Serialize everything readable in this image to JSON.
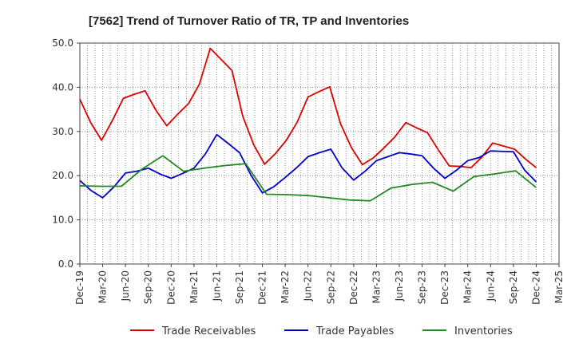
{
  "chart_data": {
    "type": "line",
    "title": "[7562]  Trend of Turnover Ratio of TR, TP and Inventories",
    "xlabel": "",
    "ylabel": "",
    "ylim": [
      0,
      50
    ],
    "y_ticks": [
      "0.0",
      "10.0",
      "20.0",
      "30.0",
      "40.0",
      "50.0"
    ],
    "x_tick_labels": [
      "Dec-19",
      "Mar-20",
      "Jun-20",
      "Sep-20",
      "Dec-20",
      "Mar-21",
      "Jun-21",
      "Sep-21",
      "Dec-21",
      "Mar-22",
      "Jun-22",
      "Sep-22",
      "Dec-22",
      "Mar-23",
      "Jun-23",
      "Sep-23",
      "Dec-23",
      "Mar-24",
      "Jun-24",
      "Sep-24",
      "Dec-24",
      "Mar-25"
    ],
    "grid": true,
    "legend_position": "bottom",
    "series": [
      {
        "name": "Trade Receivables",
        "color": "#dd0000",
        "values": [
          37.3,
          32.0,
          28.0,
          32.5,
          37.5,
          38.4,
          39.2,
          34.8,
          31.3,
          33.9,
          36.3,
          40.7,
          48.8,
          46.3,
          43.8,
          33.4,
          27.0,
          22.6,
          25.0,
          28.0,
          32.1,
          37.8,
          39.0,
          40.1,
          31.7,
          26.3,
          22.5,
          24.0,
          26.3,
          28.8,
          32.0,
          30.8,
          29.7,
          25.8,
          22.2,
          22.1,
          21.8,
          24.2,
          27.4,
          26.7,
          26.0,
          23.8,
          21.8
        ]
      },
      {
        "name": "Trade Payables",
        "color": "#0000cc",
        "values": [
          18.9,
          16.6,
          15.0,
          17.5,
          20.6,
          21.0,
          21.7,
          20.4,
          19.4,
          20.5,
          21.7,
          24.9,
          29.3,
          27.3,
          25.2,
          20.1,
          16.1,
          17.5,
          19.6,
          21.8,
          24.3,
          25.2,
          26.0,
          21.7,
          19.0,
          21.0,
          23.4,
          24.3,
          25.2,
          24.9,
          24.5,
          21.7,
          19.4,
          21.2,
          23.4,
          24.1,
          25.6,
          25.5,
          25.4,
          21.2,
          18.6
        ]
      },
      {
        "name": "Inventories",
        "color": "#228822",
        "values": [
          17.7,
          17.6,
          17.6,
          21.5,
          24.5,
          21.0,
          21.7,
          22.3,
          22.7,
          15.8,
          15.7,
          15.5,
          15.0,
          14.5,
          14.3,
          17.2,
          18.0,
          18.5,
          16.5,
          19.8,
          20.4,
          21.1,
          17.3
        ]
      }
    ]
  }
}
